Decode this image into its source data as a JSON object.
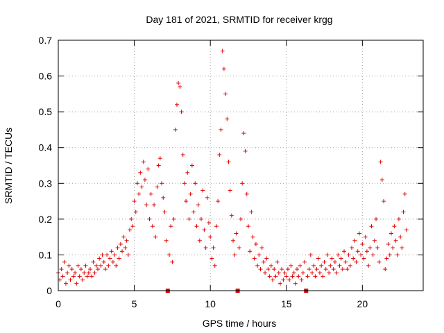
{
  "chart_data": {
    "type": "scatter",
    "title": "Day 181 of 2021, SRMTID for receiver krgg",
    "xlabel": "GPS time / hours",
    "ylabel": "SRMTID / TECUs",
    "xlim": [
      0,
      24
    ],
    "ylim": [
      0,
      0.7
    ],
    "xticks": [
      "0",
      "5",
      "10",
      "15",
      "20"
    ],
    "xtick_values": [
      0,
      5,
      10,
      15,
      20
    ],
    "yticks": [
      "0",
      "0.1",
      "0.2",
      "0.3",
      "0.4",
      "0.5",
      "0.6",
      "0.7"
    ],
    "ytick_values": [
      0,
      0.1,
      0.2,
      0.3,
      0.4,
      0.5,
      0.6,
      0.7
    ],
    "grid": true,
    "marker": "+",
    "series_color": "#e00000",
    "data_gaps_hours": [
      7.2,
      11.8,
      16.3
    ],
    "series": [
      {
        "name": "SRMTID",
        "points": [
          [
            0.0,
            0.05
          ],
          [
            0.1,
            0.03
          ],
          [
            0.2,
            0.06
          ],
          [
            0.3,
            0.04
          ],
          [
            0.4,
            0.08
          ],
          [
            0.5,
            0.02
          ],
          [
            0.6,
            0.05
          ],
          [
            0.7,
            0.07
          ],
          [
            0.8,
            0.03
          ],
          [
            0.9,
            0.06
          ],
          [
            1.0,
            0.04
          ],
          [
            1.1,
            0.05
          ],
          [
            1.2,
            0.02
          ],
          [
            1.3,
            0.07
          ],
          [
            1.4,
            0.04
          ],
          [
            1.5,
            0.06
          ],
          [
            1.6,
            0.03
          ],
          [
            1.7,
            0.05
          ],
          [
            1.8,
            0.07
          ],
          [
            1.9,
            0.04
          ],
          [
            2.0,
            0.05
          ],
          [
            2.1,
            0.06
          ],
          [
            2.2,
            0.04
          ],
          [
            2.3,
            0.08
          ],
          [
            2.4,
            0.05
          ],
          [
            2.5,
            0.07
          ],
          [
            2.6,
            0.06
          ],
          [
            2.7,
            0.09
          ],
          [
            2.8,
            0.07
          ],
          [
            2.9,
            0.1
          ],
          [
            3.0,
            0.08
          ],
          [
            3.1,
            0.06
          ],
          [
            3.2,
            0.1
          ],
          [
            3.3,
            0.07
          ],
          [
            3.4,
            0.09
          ],
          [
            3.5,
            0.11
          ],
          [
            3.6,
            0.08
          ],
          [
            3.7,
            0.1
          ],
          [
            3.8,
            0.07
          ],
          [
            3.9,
            0.12
          ],
          [
            4.0,
            0.09
          ],
          [
            4.1,
            0.13
          ],
          [
            4.2,
            0.11
          ],
          [
            4.3,
            0.15
          ],
          [
            4.4,
            0.12
          ],
          [
            4.5,
            0.14
          ],
          [
            4.6,
            0.1
          ],
          [
            4.7,
            0.17
          ],
          [
            4.8,
            0.2
          ],
          [
            4.9,
            0.18
          ],
          [
            5.0,
            0.25
          ],
          [
            5.1,
            0.22
          ],
          [
            5.2,
            0.3
          ],
          [
            5.3,
            0.27
          ],
          [
            5.4,
            0.33
          ],
          [
            5.5,
            0.29
          ],
          [
            5.6,
            0.36
          ],
          [
            5.7,
            0.31
          ],
          [
            5.8,
            0.24
          ],
          [
            5.9,
            0.34
          ],
          [
            6.0,
            0.2
          ],
          [
            6.1,
            0.27
          ],
          [
            6.2,
            0.18
          ],
          [
            6.3,
            0.24
          ],
          [
            6.4,
            0.15
          ],
          [
            6.5,
            0.29
          ],
          [
            6.6,
            0.35
          ],
          [
            6.7,
            0.37
          ],
          [
            6.8,
            0.3
          ],
          [
            6.9,
            0.26
          ],
          [
            7.0,
            0.22
          ],
          [
            7.1,
            0.14
          ],
          [
            7.3,
            0.1
          ],
          [
            7.4,
            0.18
          ],
          [
            7.5,
            0.08
          ],
          [
            7.6,
            0.2
          ],
          [
            7.7,
            0.45
          ],
          [
            7.8,
            0.52
          ],
          [
            7.9,
            0.58
          ],
          [
            8.0,
            0.57
          ],
          [
            8.1,
            0.5
          ],
          [
            8.2,
            0.38
          ],
          [
            8.3,
            0.3
          ],
          [
            8.4,
            0.25
          ],
          [
            8.5,
            0.33
          ],
          [
            8.6,
            0.2
          ],
          [
            8.7,
            0.27
          ],
          [
            8.8,
            0.35
          ],
          [
            8.9,
            0.22
          ],
          [
            9.0,
            0.3
          ],
          [
            9.1,
            0.18
          ],
          [
            9.2,
            0.24
          ],
          [
            9.3,
            0.14
          ],
          [
            9.4,
            0.2
          ],
          [
            9.5,
            0.28
          ],
          [
            9.6,
            0.17
          ],
          [
            9.7,
            0.12
          ],
          [
            9.8,
            0.26
          ],
          [
            9.9,
            0.19
          ],
          [
            10.0,
            0.15
          ],
          [
            10.1,
            0.09
          ],
          [
            10.2,
            0.12
          ],
          [
            10.3,
            0.07
          ],
          [
            10.4,
            0.18
          ],
          [
            10.5,
            0.25
          ],
          [
            10.6,
            0.38
          ],
          [
            10.7,
            0.45
          ],
          [
            10.8,
            0.67
          ],
          [
            10.9,
            0.62
          ],
          [
            11.0,
            0.55
          ],
          [
            11.1,
            0.48
          ],
          [
            11.2,
            0.36
          ],
          [
            11.3,
            0.28
          ],
          [
            11.4,
            0.21
          ],
          [
            11.5,
            0.14
          ],
          [
            11.6,
            0.1
          ],
          [
            11.7,
            0.16
          ],
          [
            11.9,
            0.12
          ],
          [
            12.0,
            0.2
          ],
          [
            12.1,
            0.3
          ],
          [
            12.2,
            0.44
          ],
          [
            12.3,
            0.39
          ],
          [
            12.4,
            0.27
          ],
          [
            12.5,
            0.18
          ],
          [
            12.6,
            0.11
          ],
          [
            12.7,
            0.22
          ],
          [
            12.8,
            0.15
          ],
          [
            12.9,
            0.09
          ],
          [
            13.0,
            0.13
          ],
          [
            13.1,
            0.07
          ],
          [
            13.2,
            0.1
          ],
          [
            13.3,
            0.06
          ],
          [
            13.4,
            0.12
          ],
          [
            13.5,
            0.08
          ],
          [
            13.6,
            0.05
          ],
          [
            13.7,
            0.09
          ],
          [
            13.8,
            0.06
          ],
          [
            13.9,
            0.04
          ],
          [
            14.0,
            0.07
          ],
          [
            14.1,
            0.03
          ],
          [
            14.2,
            0.06
          ],
          [
            14.3,
            0.04
          ],
          [
            14.4,
            0.08
          ],
          [
            14.5,
            0.05
          ],
          [
            14.6,
            0.02
          ],
          [
            14.7,
            0.06
          ],
          [
            14.8,
            0.03
          ],
          [
            14.9,
            0.05
          ],
          [
            15.0,
            0.04
          ],
          [
            15.1,
            0.06
          ],
          [
            15.2,
            0.03
          ],
          [
            15.3,
            0.07
          ],
          [
            15.4,
            0.04
          ],
          [
            15.5,
            0.05
          ],
          [
            15.6,
            0.02
          ],
          [
            15.7,
            0.06
          ],
          [
            15.8,
            0.04
          ],
          [
            15.9,
            0.07
          ],
          [
            16.0,
            0.03
          ],
          [
            16.1,
            0.05
          ],
          [
            16.2,
            0.08
          ],
          [
            16.4,
            0.04
          ],
          [
            16.5,
            0.06
          ],
          [
            16.6,
            0.1
          ],
          [
            16.7,
            0.05
          ],
          [
            16.8,
            0.07
          ],
          [
            16.9,
            0.04
          ],
          [
            17.0,
            0.06
          ],
          [
            17.1,
            0.09
          ],
          [
            17.2,
            0.05
          ],
          [
            17.3,
            0.07
          ],
          [
            17.4,
            0.04
          ],
          [
            17.5,
            0.08
          ],
          [
            17.6,
            0.06
          ],
          [
            17.7,
            0.1
          ],
          [
            17.8,
            0.05
          ],
          [
            17.9,
            0.07
          ],
          [
            18.0,
            0.09
          ],
          [
            18.1,
            0.06
          ],
          [
            18.2,
            0.08
          ],
          [
            18.3,
            0.05
          ],
          [
            18.4,
            0.1
          ],
          [
            18.5,
            0.07
          ],
          [
            18.6,
            0.09
          ],
          [
            18.7,
            0.06
          ],
          [
            18.8,
            0.11
          ],
          [
            18.9,
            0.08
          ],
          [
            19.0,
            0.06
          ],
          [
            19.1,
            0.1
          ],
          [
            19.2,
            0.07
          ],
          [
            19.3,
            0.12
          ],
          [
            19.4,
            0.09
          ],
          [
            19.5,
            0.14
          ],
          [
            19.6,
            0.08
          ],
          [
            19.7,
            0.11
          ],
          [
            19.8,
            0.16
          ],
          [
            19.9,
            0.1
          ],
          [
            20.0,
            0.13
          ],
          [
            20.1,
            0.09
          ],
          [
            20.2,
            0.15
          ],
          [
            20.3,
            0.11
          ],
          [
            20.4,
            0.07
          ],
          [
            20.5,
            0.12
          ],
          [
            20.6,
            0.18
          ],
          [
            20.7,
            0.1
          ],
          [
            20.8,
            0.14
          ],
          [
            20.9,
            0.2
          ],
          [
            21.0,
            0.12
          ],
          [
            21.1,
            0.08
          ],
          [
            21.2,
            0.36
          ],
          [
            21.3,
            0.31
          ],
          [
            21.4,
            0.25
          ],
          [
            21.5,
            0.06
          ],
          [
            21.6,
            0.09
          ],
          [
            21.7,
            0.13
          ],
          [
            21.8,
            0.1
          ],
          [
            21.9,
            0.16
          ],
          [
            22.0,
            0.12
          ],
          [
            22.1,
            0.18
          ],
          [
            22.2,
            0.14
          ],
          [
            22.3,
            0.1
          ],
          [
            22.4,
            0.2
          ],
          [
            22.5,
            0.15
          ],
          [
            22.6,
            0.12
          ],
          [
            22.7,
            0.22
          ],
          [
            22.8,
            0.27
          ],
          [
            22.9,
            0.17
          ]
        ]
      }
    ]
  }
}
